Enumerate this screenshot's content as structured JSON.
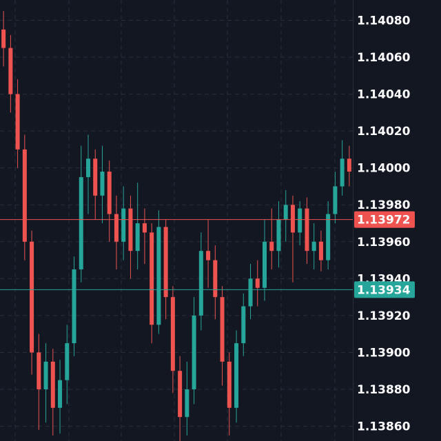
{
  "chart_data": {
    "type": "candlestick",
    "categories": [
      null,
      null,
      null,
      null,
      null,
      null,
      null,
      null,
      null,
      null,
      null,
      null,
      null,
      null,
      null,
      null,
      null,
      null,
      null,
      null,
      null,
      null,
      null,
      null,
      null,
      null,
      null,
      null,
      null,
      null,
      null,
      null,
      null,
      null,
      null,
      null,
      null,
      null,
      null,
      null,
      null,
      null,
      null,
      null,
      null,
      null,
      null,
      null,
      null,
      null
    ],
    "open": [
      1.14075,
      1.14065,
      1.1404,
      1.1401,
      1.1396,
      1.139,
      1.1388,
      1.13895,
      1.1387,
      1.13885,
      1.13905,
      1.13945,
      1.13995,
      1.14005,
      1.13985,
      1.13998,
      1.13975,
      1.1396,
      1.13978,
      1.13955,
      1.1397,
      1.13965,
      1.13915,
      1.13968,
      1.1393,
      1.1389,
      1.13865,
      1.1388,
      1.1392,
      1.13955,
      1.1395,
      1.1393,
      1.13895,
      1.1387,
      1.13905,
      1.13925,
      1.1394,
      1.13935,
      1.1396,
      1.13955,
      1.13972,
      1.1398,
      1.13965,
      1.13978,
      1.13955,
      1.1396,
      1.1395,
      1.13975,
      1.1399,
      1.14005
    ],
    "high": [
      1.14085,
      1.14072,
      1.14048,
      1.14018,
      1.13966,
      1.1391,
      1.13905,
      1.13902,
      1.13896,
      1.13915,
      1.13952,
      1.14012,
      1.14018,
      1.1401,
      1.14012,
      1.14004,
      1.13985,
      1.1399,
      1.13985,
      1.13992,
      1.13978,
      1.1397,
      1.13977,
      1.13972,
      1.13936,
      1.13898,
      1.13895,
      1.1393,
      1.13965,
      1.13972,
      1.13958,
      1.13936,
      1.139,
      1.13912,
      1.13932,
      1.13948,
      1.1395,
      1.13972,
      1.13978,
      1.13982,
      1.13988,
      1.13985,
      1.13982,
      1.13984,
      1.1397,
      1.13966,
      1.13982,
      1.13998,
      1.14015,
      1.14012
    ],
    "low": [
      1.14055,
      1.1403,
      1.14,
      1.1395,
      1.13888,
      1.13858,
      1.13862,
      1.13855,
      1.13856,
      1.13872,
      1.13898,
      1.13938,
      1.13975,
      1.13972,
      1.1397,
      1.1396,
      1.13945,
      1.1395,
      1.1394,
      1.13945,
      1.13948,
      1.13905,
      1.1391,
      1.13918,
      1.13878,
      1.13852,
      1.13855,
      1.13872,
      1.13912,
      1.13935,
      1.13918,
      1.13882,
      1.13855,
      1.13862,
      1.13898,
      1.13918,
      1.13925,
      1.13928,
      1.13945,
      1.13946,
      1.1396,
      1.13938,
      1.13958,
      1.13948,
      1.13945,
      1.13944,
      1.13945,
      1.1397,
      1.13985,
      1.1399
    ],
    "close": [
      1.14065,
      1.1404,
      1.1401,
      1.1396,
      1.139,
      1.1388,
      1.13895,
      1.1387,
      1.13885,
      1.13905,
      1.13945,
      1.13995,
      1.14005,
      1.13985,
      1.13998,
      1.13975,
      1.1396,
      1.13978,
      1.13955,
      1.1397,
      1.13965,
      1.13915,
      1.13968,
      1.1393,
      1.1389,
      1.13865,
      1.1388,
      1.1392,
      1.13955,
      1.1395,
      1.1393,
      1.13895,
      1.1387,
      1.13905,
      1.13925,
      1.1394,
      1.13935,
      1.1396,
      1.13955,
      1.13972,
      1.1398,
      1.13965,
      1.13978,
      1.13955,
      1.1396,
      1.1395,
      1.13975,
      1.1399,
      1.14005,
      1.13998
    ],
    "up_color": "#26a69a",
    "down_color": "#ef5350",
    "ylim": [
      1.13852,
      1.14091
    ],
    "yticks": [
      {
        "value": 1.1408,
        "label": "1.14080"
      },
      {
        "value": 1.1406,
        "label": "1.14060"
      },
      {
        "value": 1.1404,
        "label": "1.14040"
      },
      {
        "value": 1.1402,
        "label": "1.14020"
      },
      {
        "value": 1.14,
        "label": "1.14000"
      },
      {
        "value": 1.1398,
        "label": "1.13980"
      },
      {
        "value": 1.1396,
        "label": "1.13960"
      },
      {
        "value": 1.1394,
        "label": "1.13940"
      },
      {
        "value": 1.1392,
        "label": "1.13920"
      },
      {
        "value": 1.139,
        "label": "1.13900"
      },
      {
        "value": 1.1388,
        "label": "1.13880"
      },
      {
        "value": 1.1386,
        "label": "1.13860"
      }
    ],
    "grid": true,
    "price_lines": [
      {
        "value": 1.13972,
        "label": "1.13972",
        "color": "#ef5350"
      },
      {
        "value": 1.13934,
        "label": "1.13934",
        "color": "#26a69a"
      }
    ]
  }
}
